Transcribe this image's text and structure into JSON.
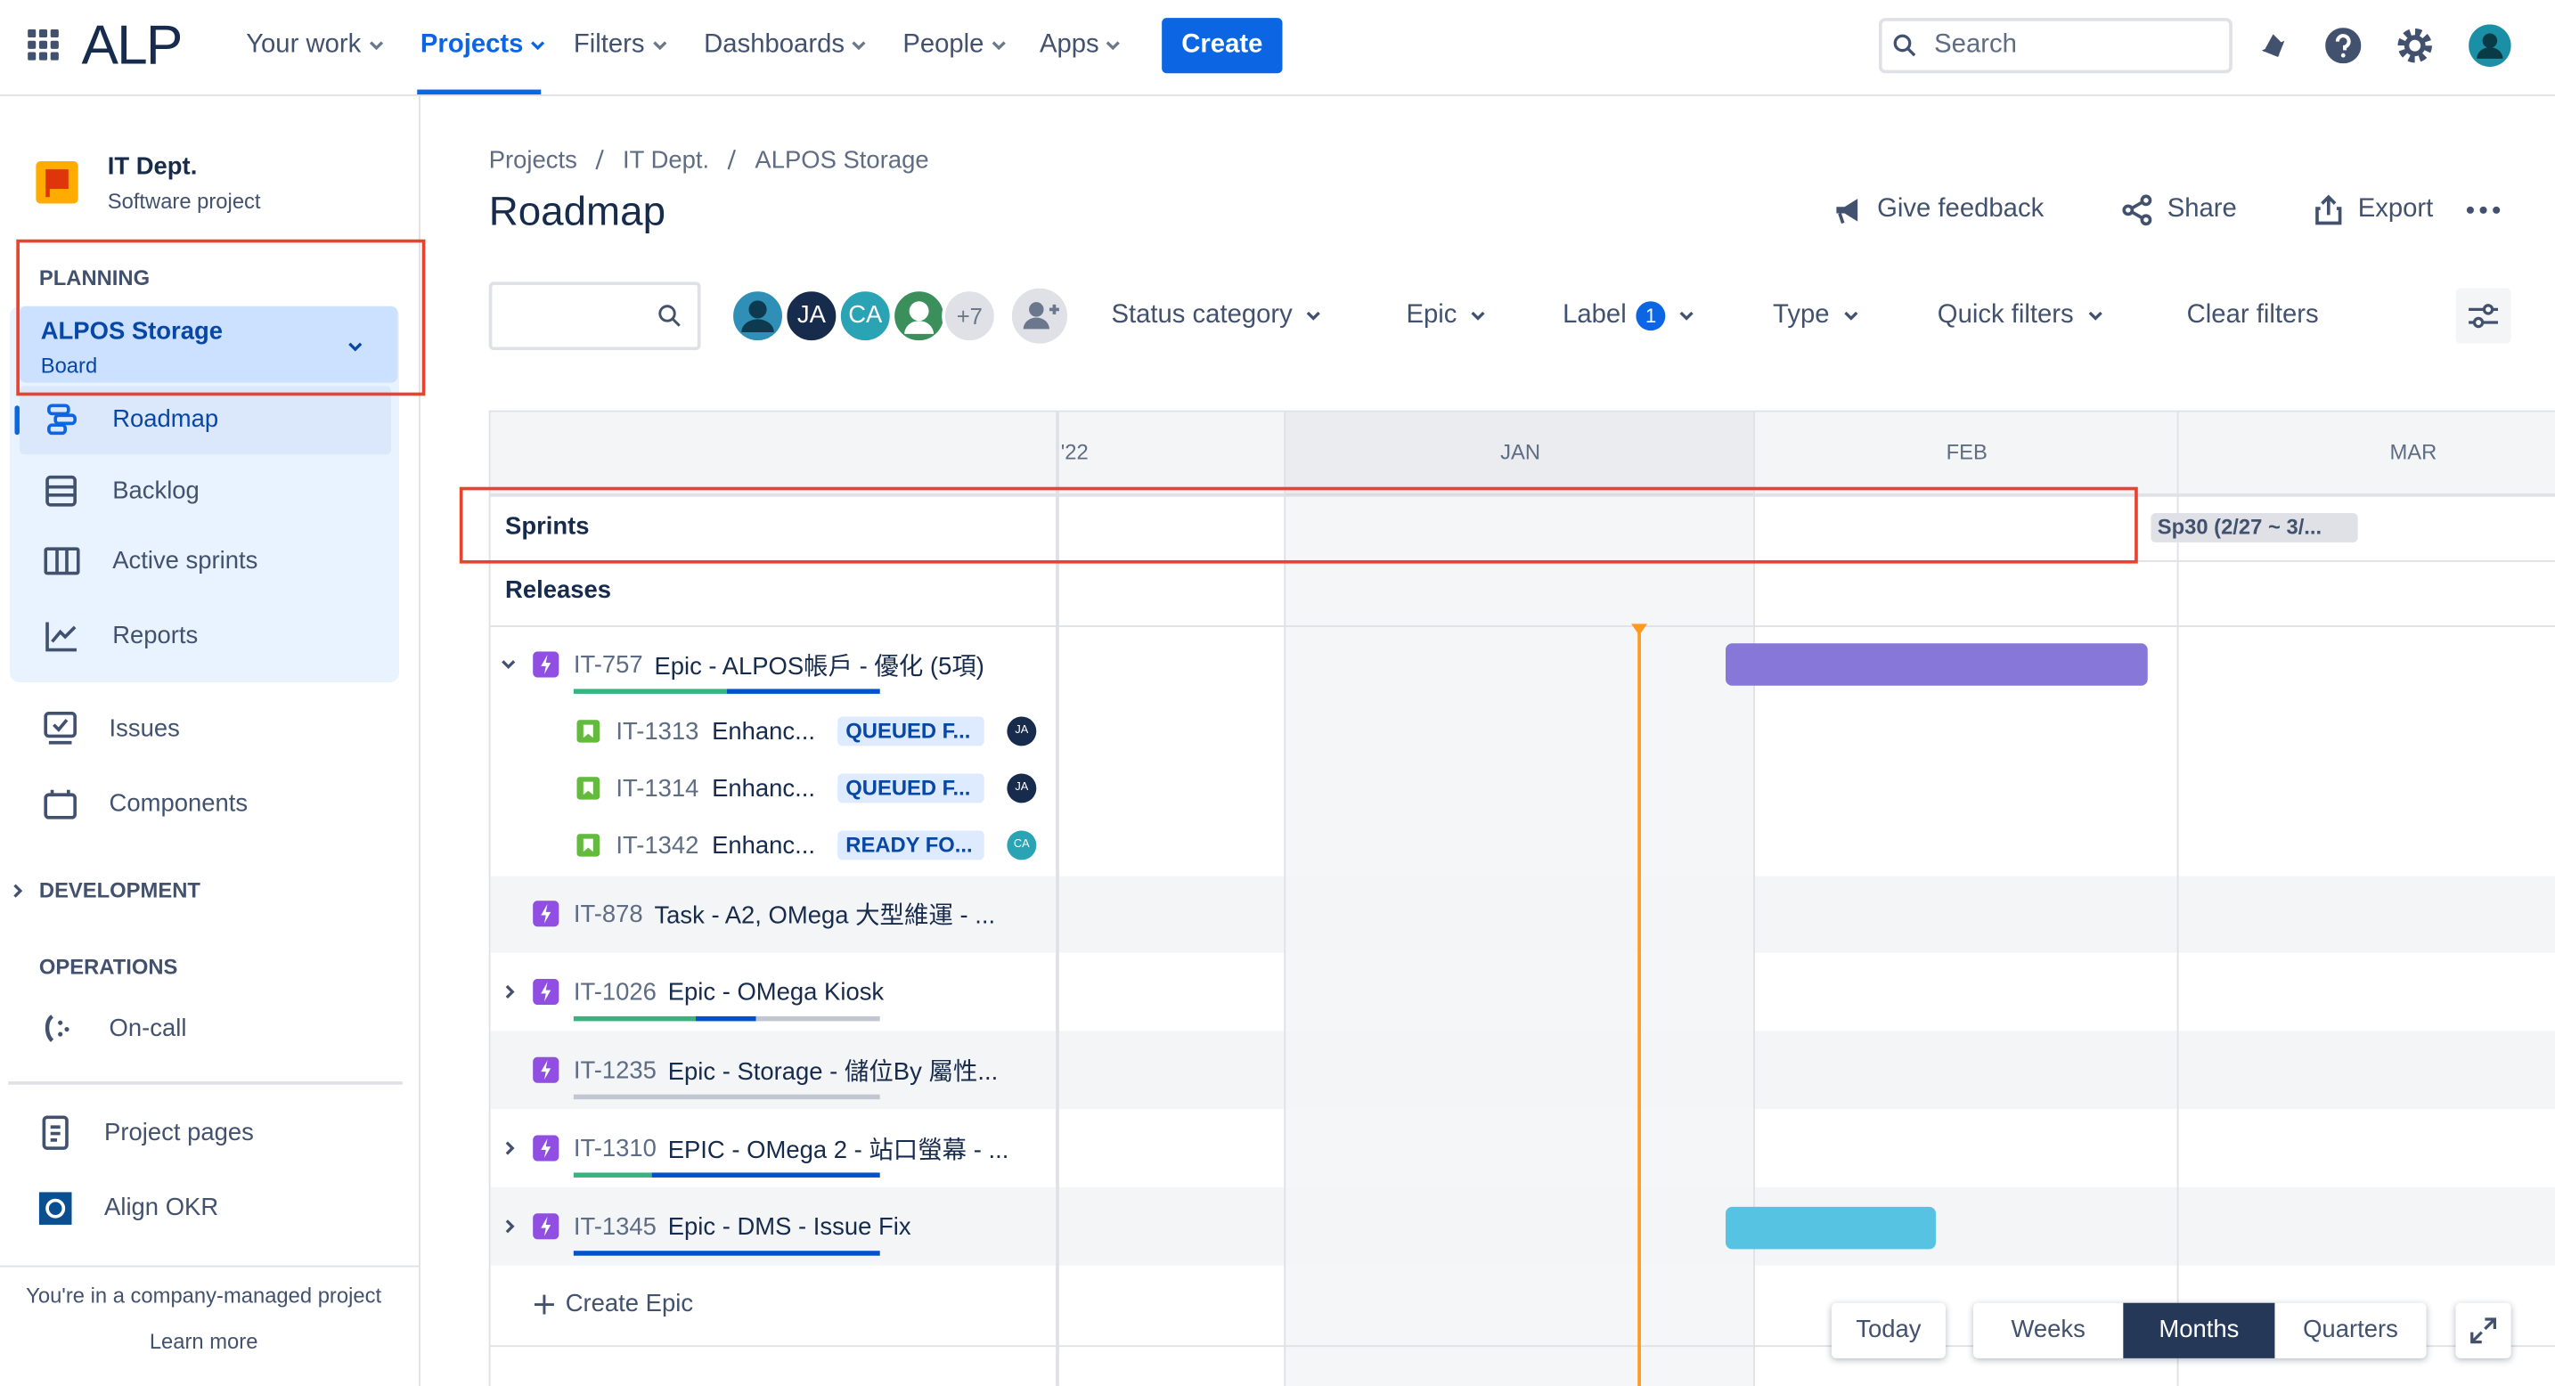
{
  "nav": {
    "logo": "ALP",
    "items": [
      "Your work",
      "Projects",
      "Filters",
      "Dashboards",
      "People",
      "Apps"
    ],
    "create": "Create",
    "search": "Search"
  },
  "sidebar": {
    "project": {
      "name": "IT Dept.",
      "type": "Software project"
    },
    "planning": {
      "heading": "PLANNING",
      "board": "ALPOS Storage",
      "board_type": "Board",
      "items": [
        "Roadmap",
        "Backlog",
        "Active sprints",
        "Reports"
      ]
    },
    "items": [
      "Issues",
      "Components"
    ],
    "development": "DEVELOPMENT",
    "operations": {
      "heading": "OPERATIONS",
      "items": [
        "On-call"
      ]
    },
    "pages": [
      "Project pages",
      "Align OKR"
    ],
    "footer": {
      "text": "You're in a company-managed project",
      "link": "Learn more"
    }
  },
  "breadcrumbs": [
    "Projects",
    "IT Dept.",
    "ALPOS Storage"
  ],
  "title": "Roadmap",
  "actions": [
    "Give feedback",
    "Share",
    "Export"
  ],
  "filters": {
    "avatars": [
      "JA",
      "CA"
    ],
    "more": "+7",
    "items": [
      "Status category",
      "Epic",
      "Label",
      "Type",
      "Quick filters"
    ],
    "label_count": 1,
    "clear": "Clear filters"
  },
  "timeline": {
    "months": [
      "'22",
      "JAN",
      "FEB",
      "MAR"
    ],
    "rows": [
      "Sprints",
      "Releases"
    ],
    "sprint": "Sp30 (2/27 ~ 3/..."
  },
  "issues": [
    {
      "key": "IT-757",
      "summary": "Epic - ALPOS帳戶 - 優化 (5項)",
      "children": [
        {
          "key": "IT-1313",
          "summary": "Enhanc...",
          "status": "QUEUED F...",
          "assignee": "JA"
        },
        {
          "key": "IT-1314",
          "summary": "Enhanc...",
          "status": "QUEUED F...",
          "assignee": "JA"
        },
        {
          "key": "IT-1342",
          "summary": "Enhanc...",
          "status": "READY FO...",
          "assignee": "CA"
        }
      ]
    },
    {
      "key": "IT-878",
      "summary": "Task - A2, OMega 大型維運 - ..."
    },
    {
      "key": "IT-1026",
      "summary": "Epic - OMega Kiosk"
    },
    {
      "key": "IT-1235",
      "summary": "Epic - Storage - 儲位By 屬性..."
    },
    {
      "key": "IT-1310",
      "summary": "EPIC - OMega 2 - 站口螢幕 - ..."
    },
    {
      "key": "IT-1345",
      "summary": "Epic - DMS - Issue Fix"
    }
  ],
  "create_epic": "Create Epic",
  "view": {
    "today": "Today",
    "scales": [
      "Weeks",
      "Months",
      "Quarters"
    ]
  }
}
